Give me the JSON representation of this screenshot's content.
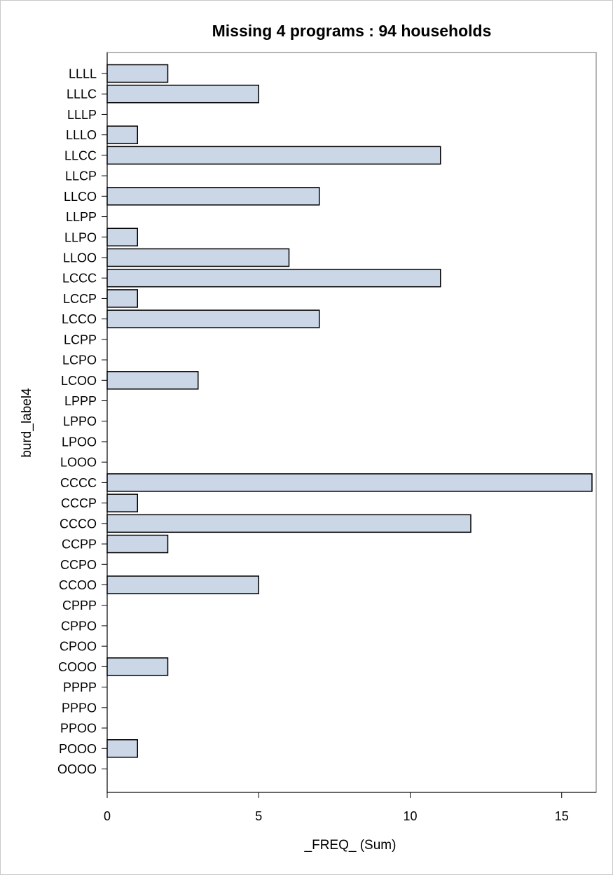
{
  "chart_data": {
    "type": "bar",
    "orientation": "horizontal",
    "title": "Missing 4 programs : 94 households",
    "xlabel": "_FREQ_ (Sum)",
    "ylabel": "burd_label4",
    "xlim": [
      0,
      16
    ],
    "xticks": [
      0,
      5,
      10,
      15
    ],
    "grid": false,
    "bar_color": "#cbd6e6",
    "bar_edge_color": "#000000",
    "categories": [
      "LLLL",
      "LLLC",
      "LLLP",
      "LLLO",
      "LLCC",
      "LLCP",
      "LLCO",
      "LLPP",
      "LLPO",
      "LLOO",
      "LCCC",
      "LCCP",
      "LCCO",
      "LCPP",
      "LCPO",
      "LCOO",
      "LPPP",
      "LPPO",
      "LPOO",
      "LOOO",
      "CCCC",
      "CCCP",
      "CCCO",
      "CCPP",
      "CCPO",
      "CCOO",
      "CPPP",
      "CPPO",
      "CPOO",
      "COOO",
      "PPPP",
      "PPPO",
      "PPOO",
      "POOO",
      "OOOO"
    ],
    "values": [
      2,
      5,
      0,
      1,
      11,
      0,
      7,
      0,
      1,
      6,
      11,
      1,
      7,
      0,
      0,
      3,
      0,
      0,
      0,
      0,
      16,
      1,
      12,
      2,
      0,
      5,
      0,
      0,
      0,
      2,
      0,
      0,
      0,
      1,
      0
    ]
  }
}
